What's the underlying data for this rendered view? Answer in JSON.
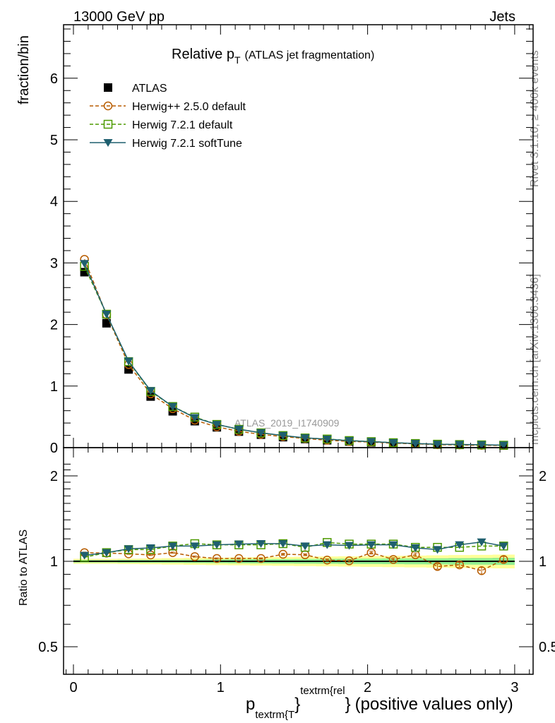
{
  "header": {
    "left": "13000 GeV pp",
    "right": "Jets"
  },
  "side_text": {
    "top": "Rivet 3.1.10, ≥ 400k events",
    "bottom": "mcplots.cern.ch [arXiv:1306.3436]"
  },
  "watermark": "ATLAS_2019_I1740909",
  "chart_data": [
    {
      "type": "line",
      "title_main": "Relative p",
      "title_sub": "T",
      "title_rest": "(ATLAS jet fragmentation)",
      "ylabel": "fraction/bin",
      "ylim": [
        0,
        6.9
      ],
      "yticks": [
        "0",
        "1",
        "2",
        "3",
        "4",
        "5",
        "6"
      ],
      "xlim": [
        -0.07,
        3.12
      ],
      "x": [
        0.075,
        0.225,
        0.375,
        0.525,
        0.675,
        0.825,
        0.975,
        1.125,
        1.275,
        1.425,
        1.575,
        1.725,
        1.875,
        2.025,
        2.175,
        2.325,
        2.475,
        2.625,
        2.775,
        2.925
      ],
      "data": {
        "name": "ATLAS",
        "color": "#000000",
        "values": [
          2.85,
          2.02,
          1.27,
          0.83,
          0.59,
          0.43,
          0.33,
          0.26,
          0.21,
          0.17,
          0.14,
          0.12,
          0.1,
          0.085,
          0.07,
          0.06,
          0.05,
          0.045,
          0.04,
          0.035
        ]
      },
      "series": [
        {
          "name": "Herwig++ 2.5.0 default",
          "color": "#b85c00",
          "marker": "circle",
          "dash": true
        },
        {
          "name": "Herwig 7.2.1 default",
          "color": "#4d9a00",
          "marker": "square",
          "dash": true
        },
        {
          "name": "Herwig 7.2.1 softTune",
          "color": "#1f5f6f",
          "marker": "triangle-down",
          "dash": false
        }
      ],
      "legend_position": "top-left"
    },
    {
      "type": "line",
      "ylabel": "Ratio to ATLAS",
      "yscale": "log",
      "ylim": [
        0.42,
        2.35
      ],
      "yticks": [
        "0.5",
        "1",
        "2"
      ],
      "ytick_values": [
        0.5,
        1,
        2
      ],
      "xticks": [
        "0",
        "1",
        "2",
        "3"
      ],
      "xtick_values": [
        0,
        1,
        2,
        3
      ],
      "xlabel": {
        "main": "p",
        "sub": "textrm{T",
        "brace1": "}",
        "sup": "textrm{rel",
        "brace2": "}",
        "rest": "(positive values only)"
      },
      "series": [
        {
          "name": "Herwig++ 2.5.0 default",
          "values": [
            1.073,
            1.069,
            1.063,
            1.053,
            1.073,
            1.039,
            1.023,
            1.023,
            1.023,
            1.059,
            1.055,
            1.01,
            1.004,
            1.073,
            1.015,
            1.055,
            0.959,
            0.972,
            0.927,
            1.015
          ],
          "errors": [
            0.005,
            0.005,
            0.005,
            0.005,
            0.005,
            0.005,
            0.005,
            0.005,
            0.005,
            0.008,
            0.008,
            0.01,
            0.01,
            0.012,
            0.015,
            0.015,
            0.02,
            0.02,
            0.025,
            0.025
          ]
        },
        {
          "name": "Herwig 7.2.1 default",
          "values": [
            1.033,
            1.073,
            1.1,
            1.1,
            1.132,
            1.154,
            1.143,
            1.143,
            1.143,
            1.154,
            1.12,
            1.165,
            1.15,
            1.15,
            1.15,
            1.12,
            1.12,
            1.12,
            1.132,
            1.132
          ]
        },
        {
          "name": "Herwig 7.2.1 softTune",
          "values": [
            1.049,
            1.073,
            1.106,
            1.115,
            1.132,
            1.132,
            1.143,
            1.15,
            1.154,
            1.154,
            1.132,
            1.143,
            1.137,
            1.143,
            1.143,
            1.115,
            1.1,
            1.143,
            1.17,
            1.132
          ]
        }
      ],
      "band_inner": [
        0.01,
        0.01,
        0.012,
        0.012,
        0.013,
        0.014,
        0.015,
        0.016,
        0.017,
        0.018,
        0.019,
        0.02,
        0.021,
        0.022,
        0.023,
        0.024,
        0.025,
        0.026,
        0.027,
        0.028
      ],
      "band_outer": [
        0.02,
        0.02,
        0.022,
        0.024,
        0.026,
        0.028,
        0.03,
        0.032,
        0.034,
        0.036,
        0.038,
        0.04,
        0.042,
        0.044,
        0.046,
        0.048,
        0.05,
        0.052,
        0.054,
        0.056
      ],
      "band_colors": {
        "inner": "#90ee90",
        "outer": "#ffff99"
      }
    }
  ]
}
